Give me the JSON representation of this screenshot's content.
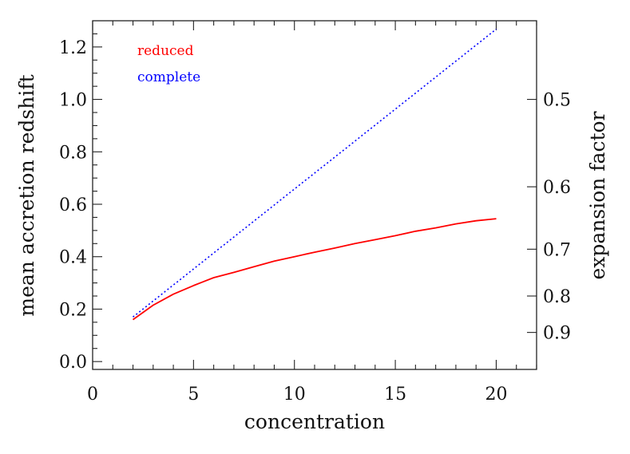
{
  "chart_data": {
    "type": "line",
    "xlabel": "concentration",
    "ylabel": "mean accretion redshift",
    "y2label": "expansion factor",
    "xlim": [
      0,
      22
    ],
    "ylim": [
      -0.03,
      1.3
    ],
    "xticks": [
      0,
      5,
      10,
      15,
      20
    ],
    "xtick_labels": [
      "0",
      "5",
      "10",
      "15",
      "20"
    ],
    "xminor": [
      1,
      2,
      3,
      4,
      6,
      7,
      8,
      9,
      11,
      12,
      13,
      14,
      16,
      17,
      18,
      19,
      21,
      22
    ],
    "yticks": [
      0.0,
      0.2,
      0.4,
      0.6,
      0.8,
      1.0,
      1.2
    ],
    "ytick_labels": [
      "0.0",
      "0.2",
      "0.4",
      "0.6",
      "0.8",
      "1.0",
      "1.2"
    ],
    "yminor": [
      0.05,
      0.1,
      0.15,
      0.25,
      0.3,
      0.35,
      0.45,
      0.5,
      0.55,
      0.65,
      0.7,
      0.75,
      0.85,
      0.9,
      0.95,
      1.05,
      1.1,
      1.15,
      1.25
    ],
    "y2ticks": [
      0.5,
      0.6,
      0.7,
      0.8,
      0.9
    ],
    "y2tick_labels": [
      "0.5",
      "0.6",
      "0.7",
      "0.8",
      "0.9"
    ],
    "y2_scale": "redshift z = 1/a - 1",
    "grid": false,
    "legend_position": "top-left",
    "series": [
      {
        "name": "reduced",
        "color": "#ff0000",
        "style": "solid",
        "x": [
          2,
          3,
          4,
          5,
          6,
          7,
          8,
          9,
          10,
          11,
          12,
          13,
          14,
          15,
          16,
          17,
          18,
          19,
          20
        ],
        "y": [
          0.16,
          0.215,
          0.257,
          0.29,
          0.32,
          0.34,
          0.362,
          0.383,
          0.4,
          0.417,
          0.433,
          0.45,
          0.465,
          0.48,
          0.497,
          0.51,
          0.525,
          0.537,
          0.545
        ]
      },
      {
        "name": "complete",
        "color": "#0000ff",
        "style": "dotted",
        "x": [
          2,
          4,
          6,
          8,
          10,
          12,
          14,
          16,
          18,
          20
        ],
        "y": [
          0.17,
          0.292,
          0.414,
          0.536,
          0.658,
          0.78,
          0.902,
          1.024,
          1.146,
          1.268
        ]
      }
    ]
  }
}
